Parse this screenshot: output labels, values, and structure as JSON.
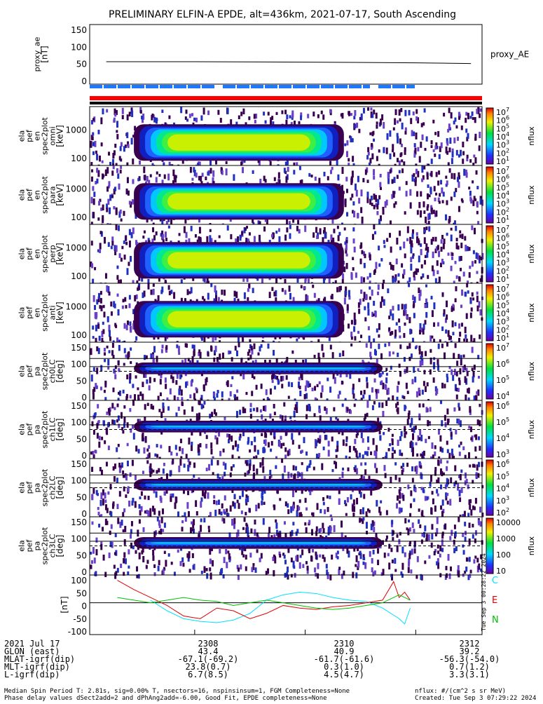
{
  "chart_data": {
    "type": "heatmap",
    "title": "PRELIMINARY ELFIN-A EPDE, alt=436km, 2021-07-17, South Ascending",
    "x": [
      "2308",
      "2310",
      "2312"
    ],
    "panels": [
      {
        "type": "line",
        "ylabel": [
          "proxy_ae",
          "[nT]"
        ],
        "yticks": [
          "150",
          "100",
          "50",
          "0"
        ],
        "ylim": [
          -10,
          155
        ],
        "legend": "proxy_AE",
        "series": [
          {
            "name": "proxy_AE",
            "x": [
              2306.4,
              2308.0,
              2310.0,
              2312.0,
              2313.0
            ],
            "values": [
              52,
              52,
              51,
              49,
              47
            ]
          }
        ]
      },
      {
        "type": "heatmap",
        "ylabel": [
          "ela",
          "pef",
          "en",
          "spec2plot",
          "omni",
          "[keV]"
        ],
        "yticks": [
          "1000",
          "100"
        ],
        "colorbar_ticks": [
          "10^7",
          "10^6",
          "10^5",
          "10^4",
          "10^3",
          "10^2",
          "10^1"
        ],
        "colorbar_label": "nflux"
      },
      {
        "type": "heatmap",
        "ylabel": [
          "ela",
          "pef",
          "en",
          "spec2plot",
          "para",
          "[keV]"
        ],
        "yticks": [
          "1000",
          "100"
        ],
        "colorbar_ticks": [
          "10^7",
          "10^6",
          "10^5",
          "10^4",
          "10^3",
          "10^2",
          "10^1"
        ],
        "colorbar_label": "nflux"
      },
      {
        "type": "heatmap",
        "ylabel": [
          "ela",
          "pef",
          "en",
          "spec2plot",
          "perp",
          "[keV]"
        ],
        "yticks": [
          "1000",
          "100"
        ],
        "colorbar_ticks": [
          "10^7",
          "10^6",
          "10^5",
          "10^4",
          "10^3",
          "10^2",
          "10^1"
        ],
        "colorbar_label": "nflux"
      },
      {
        "type": "heatmap",
        "ylabel": [
          "ela",
          "pef",
          "en",
          "spec2plot",
          "anti",
          "[keV]"
        ],
        "yticks": [
          "1000",
          "100"
        ],
        "colorbar_ticks": [
          "10^7",
          "10^6",
          "10^5",
          "10^4",
          "10^3",
          "10^2",
          "10^1"
        ],
        "colorbar_label": "nflux"
      },
      {
        "type": "heatmap",
        "ylabel": [
          "ela",
          "pef",
          "pa",
          "spec2plot",
          "ch0LC",
          "[deg]"
        ],
        "yticks": [
          "150",
          "100",
          "50",
          "0"
        ],
        "colorbar_ticks": [
          "10^7",
          "10^6",
          "10^5",
          "10^4"
        ],
        "colorbar_label": "nflux"
      },
      {
        "type": "heatmap",
        "ylabel": [
          "ela",
          "pef",
          "pa",
          "spec2plot",
          "ch1LC",
          "[deg]"
        ],
        "yticks": [
          "150",
          "100",
          "50",
          "0"
        ],
        "colorbar_ticks": [
          "10^6",
          "10^5",
          "10^4",
          "10^3"
        ],
        "colorbar_label": "nflux"
      },
      {
        "type": "heatmap",
        "ylabel": [
          "ela",
          "pef",
          "pa",
          "spec2plot",
          "ch2LC",
          "[deg]"
        ],
        "yticks": [
          "150",
          "100",
          "50",
          "0"
        ],
        "colorbar_ticks": [
          "10^6",
          "10^5",
          "10^4",
          "10^3",
          "10^2"
        ],
        "colorbar_label": "nflux"
      },
      {
        "type": "heatmap",
        "ylabel": [
          "ela",
          "pef",
          "pa",
          "spec2plot",
          "ch3LC",
          "[deg]"
        ],
        "yticks": [
          "150",
          "100",
          "50",
          "0"
        ],
        "colorbar_ticks": [
          "10000",
          "1000",
          "100",
          "10"
        ],
        "colorbar_label": "nflux"
      },
      {
        "type": "line",
        "ylabel": [
          "[nT]"
        ],
        "yticks": [
          "100",
          "50",
          "0",
          "-50",
          "-100"
        ],
        "ylim": [
          -120,
          105
        ],
        "series": [
          {
            "name": "C",
            "color": "#00e0ff",
            "x": [
              2307.2,
              2307.5,
              2307.8,
              2308.1,
              2308.4,
              2308.7,
              2309.0,
              2309.3,
              2309.6,
              2309.9,
              2310.2,
              2310.5,
              2310.8,
              2311.1,
              2311.4,
              2311.7,
              2311.8,
              2311.9
            ],
            "values": [
              10,
              -30,
              -60,
              -70,
              -75,
              -65,
              -40,
              10,
              30,
              40,
              35,
              20,
              10,
              5,
              -20,
              -60,
              -80,
              -20
            ]
          },
          {
            "name": "E",
            "color": "#e00000",
            "x": [
              2306.6,
              2306.9,
              2307.2,
              2307.5,
              2307.8,
              2308.1,
              2308.4,
              2308.7,
              2309.0,
              2309.3,
              2309.6,
              2309.9,
              2310.2,
              2310.5,
              2310.8,
              2311.1,
              2311.4,
              2311.6,
              2311.7,
              2311.8,
              2311.9
            ],
            "values": [
              85,
              50,
              20,
              -10,
              -50,
              -60,
              -20,
              -30,
              -60,
              -40,
              -10,
              -20,
              -25,
              -15,
              -10,
              0,
              10,
              80,
              20,
              40,
              10
            ]
          },
          {
            "name": "N",
            "color": "#00c000",
            "x": [
              2306.6,
              2306.9,
              2307.2,
              2307.5,
              2307.8,
              2308.1,
              2308.4,
              2308.7,
              2309.0,
              2309.3,
              2309.6,
              2309.9,
              2310.2,
              2310.5,
              2310.8,
              2311.1,
              2311.4,
              2311.7,
              2311.9
            ],
            "values": [
              20,
              10,
              0,
              10,
              20,
              10,
              5,
              -10,
              0,
              10,
              0,
              -10,
              -20,
              -25,
              -20,
              -10,
              0,
              30,
              10
            ]
          }
        ]
      }
    ]
  },
  "sidebar_label": "Tue Sep  3 00:28:22 2024",
  "orbit_table": {
    "date": "2021 Jul 17",
    "rows": [
      {
        "label": "GLON (east)",
        "values": [
          "43.4",
          "40.9",
          "39.2"
        ]
      },
      {
        "label": "MLAT-igrf(dip)",
        "values": [
          "-67.1(-69.2)",
          "-61.7(-61.6)",
          "-56.3(-54.0)"
        ]
      },
      {
        "label": "MLT-igrf(dip)",
        "values": [
          "23.8(0.7)",
          "0.3(1.0)",
          "0.7(1.2)"
        ]
      },
      {
        "label": "L-igrf(dip)",
        "values": [
          "6.7(8.5)",
          "4.5(4.7)",
          "3.3(3.1)"
        ]
      }
    ]
  },
  "footer": {
    "line1": "Median Spin Period T: 2.81s, sig=0.00% T, nsectors=16, nspinsinsum=1, FGM Completeness=None",
    "line2": "Phase delay values dSect2add=2 and dPhAng2add=-6.00, Good Fit, EPDE completeness=None",
    "units": "nflux: #/(cm^2 s sr MeV)",
    "created": "Created: Tue Sep  3 07:29:22 2024"
  },
  "colors": {
    "cyan": "#00e0ff",
    "red": "#e00000",
    "green": "#00c000",
    "blue_bar": "#1e78ff",
    "red_bar": "#ff0000"
  }
}
